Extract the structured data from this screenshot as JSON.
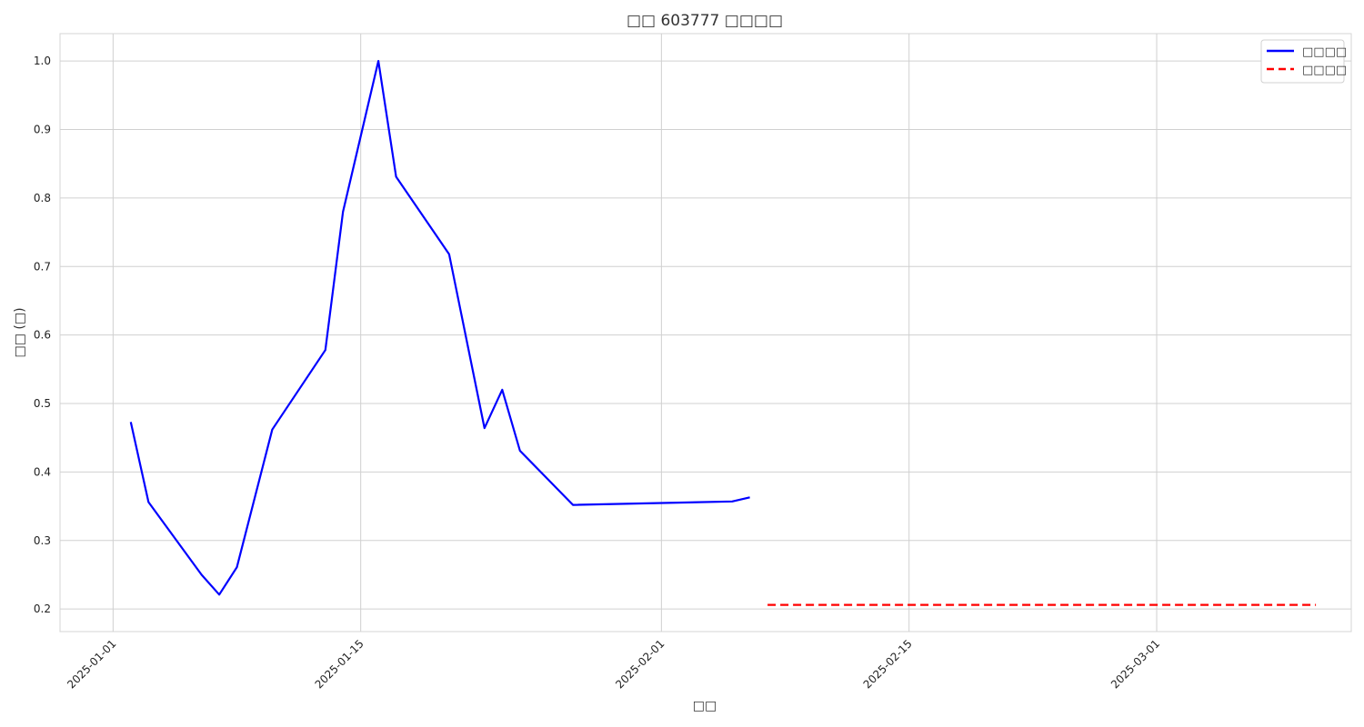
{
  "chart_data": {
    "type": "line",
    "title": "□□ 603777 □□□□",
    "xlabel": "□□",
    "ylabel": "□□ (□)",
    "x_ticks": [
      "2025-01-01",
      "2025-01-15",
      "2025-02-01",
      "2025-02-15",
      "2025-03-01"
    ],
    "y_ticks": [
      "0.2",
      "0.3",
      "0.4",
      "0.5",
      "0.6",
      "0.7",
      "0.8",
      "0.9",
      "1.0"
    ],
    "xlim": [
      "2024-12-29",
      "2025-03-12"
    ],
    "ylim": [
      0.167,
      1.04
    ],
    "grid": true,
    "legend_position": "top-right",
    "series": [
      {
        "name": "□□□□",
        "color": "#0000ff",
        "style": "solid",
        "x": [
          "2025-01-02",
          "2025-01-03",
          "2025-01-06",
          "2025-01-07",
          "2025-01-08",
          "2025-01-10",
          "2025-01-13",
          "2025-01-14",
          "2025-01-16",
          "2025-01-17",
          "2025-01-20",
          "2025-01-22",
          "2025-01-23",
          "2025-01-24",
          "2025-01-27",
          "2025-02-05",
          "2025-02-06"
        ],
        "values": [
          0.473,
          0.356,
          0.25,
          0.221,
          0.261,
          0.462,
          0.578,
          0.78,
          1.0,
          0.831,
          0.718,
          0.464,
          0.52,
          0.431,
          0.352,
          0.357,
          0.363
        ]
      },
      {
        "name": "□□□□",
        "color": "#ff0000",
        "style": "dashed",
        "x": [
          "2025-02-07",
          "2025-03-10"
        ],
        "values": [
          0.206,
          0.206
        ]
      }
    ]
  }
}
